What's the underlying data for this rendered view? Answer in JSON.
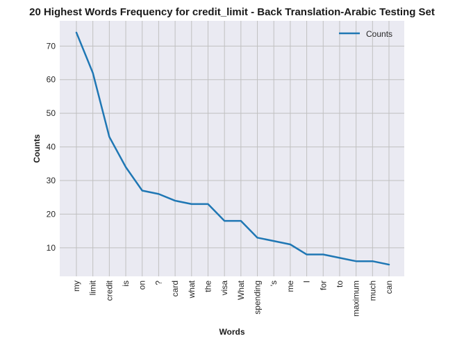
{
  "chart_data": {
    "type": "line",
    "title": "20 Highest Words Frequency for credit_limit - Back Translation-Arabic Testing Set",
    "xlabel": "Words",
    "ylabel": "Counts",
    "categories": [
      "my",
      "limit",
      "credit",
      "is",
      "on",
      "?",
      "card",
      "what",
      "the",
      "visa",
      "What",
      "spending",
      "'s",
      "me",
      "I",
      "for",
      "to",
      "maximum",
      "much",
      "can"
    ],
    "series": [
      {
        "name": "Counts",
        "values": [
          74,
          62,
          43,
          34,
          27,
          26,
          24,
          23,
          23,
          18,
          18,
          13,
          12,
          11,
          8,
          8,
          7,
          6,
          6,
          5
        ]
      }
    ],
    "yticks": [
      10,
      20,
      30,
      40,
      50,
      60,
      70
    ],
    "ylim": [
      1.5,
      77.5
    ],
    "grid": true,
    "legend_position": "top-right",
    "colors": {
      "line": "#1f77b4",
      "plot_background": "#eaeaf2",
      "grid": "#c0c0c0"
    }
  }
}
